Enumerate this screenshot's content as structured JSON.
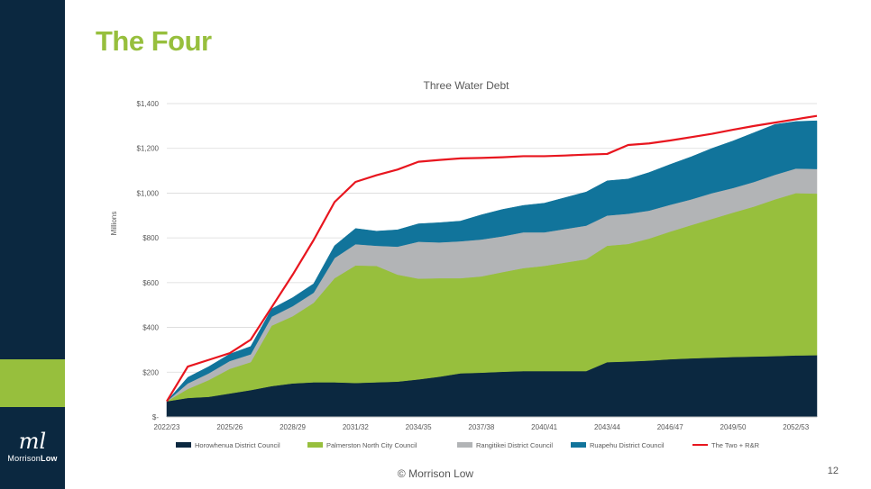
{
  "slide": {
    "title": "The Four",
    "footer": "© Morrison Low",
    "page_number": "12",
    "logo": {
      "mark": "ml",
      "text_light": "Morrison",
      "text_bold": "Low"
    }
  },
  "colors": {
    "sidebar": "#0b2840",
    "accent": "#97bf3d",
    "horowhenua": "#0b2840",
    "palmerston": "#97bf3d",
    "rangitikei": "#b2b4b6",
    "ruapehu": "#11749b",
    "total_line": "#e8161f"
  },
  "chart_data": {
    "type": "area",
    "title": "Three Water Debt",
    "xlabel": "",
    "ylabel": "Millions",
    "ylim": [
      0,
      1400
    ],
    "yticks": [
      0,
      200,
      400,
      600,
      800,
      1000,
      1200,
      1400
    ],
    "ytick_labels": [
      "$-",
      "$200",
      "$400",
      "$600",
      "$800",
      "$1,000",
      "$1,200",
      "$1,400"
    ],
    "x": [
      "2022/23",
      "2023/24",
      "2024/25",
      "2025/26",
      "2026/27",
      "2027/28",
      "2028/29",
      "2029/30",
      "2030/31",
      "2031/32",
      "2032/33",
      "2033/34",
      "2034/35",
      "2035/36",
      "2036/37",
      "2037/38",
      "2038/39",
      "2039/40",
      "2040/41",
      "2041/42",
      "2042/43",
      "2043/44",
      "2044/45",
      "2045/46",
      "2046/47",
      "2047/48",
      "2048/49",
      "2049/50",
      "2050/51",
      "2051/52",
      "2052/53",
      "2053/54"
    ],
    "xtick_labels": [
      "2022/23",
      "2025/26",
      "2028/29",
      "2031/32",
      "2034/35",
      "2037/38",
      "2040/41",
      "2043/44",
      "2046/47",
      "2049/50",
      "2052/53"
    ],
    "grid": true,
    "legend_position": "bottom",
    "series": [
      {
        "name": "Horowhenua District Council",
        "kind": "area",
        "values": [
          70,
          85,
          90,
          105,
          120,
          138,
          150,
          155,
          155,
          152,
          155,
          158,
          168,
          180,
          195,
          198,
          202,
          205,
          205,
          205,
          205,
          245,
          248,
          252,
          258,
          262,
          265,
          268,
          270,
          272,
          275,
          276
        ]
      },
      {
        "name": "Palmerston North City Council",
        "kind": "area",
        "values": [
          0,
          40,
          75,
          110,
          125,
          270,
          300,
          355,
          465,
          525,
          520,
          478,
          450,
          440,
          425,
          430,
          445,
          460,
          470,
          485,
          500,
          520,
          525,
          545,
          570,
          595,
          620,
          645,
          670,
          700,
          725,
          722
        ]
      },
      {
        "name": "Rangitikei District Council",
        "kind": "area",
        "values": [
          0,
          25,
          30,
          35,
          35,
          40,
          45,
          45,
          90,
          95,
          90,
          125,
          165,
          160,
          165,
          165,
          160,
          160,
          150,
          150,
          150,
          135,
          135,
          125,
          120,
          115,
          115,
          110,
          110,
          110,
          110,
          110
        ]
      },
      {
        "name": "Ruapehu District Council",
        "kind": "area",
        "values": [
          0,
          27,
          30,
          31,
          35,
          35,
          38,
          40,
          55,
          70,
          65,
          75,
          80,
          88,
          90,
          110,
          120,
          120,
          130,
          140,
          150,
          155,
          155,
          170,
          180,
          190,
          200,
          210,
          220,
          225,
          210,
          215
        ]
      },
      {
        "name": "The Two + R&R",
        "kind": "line",
        "values": [
          70,
          225,
          255,
          285,
          345,
          490,
          635,
          790,
          960,
          1050,
          1080,
          1105,
          1140,
          1148,
          1155,
          1157,
          1160,
          1165,
          1165,
          1168,
          1172,
          1175,
          1215,
          1222,
          1235,
          1250,
          1265,
          1283,
          1300,
          1315,
          1330,
          1345
        ]
      }
    ]
  }
}
